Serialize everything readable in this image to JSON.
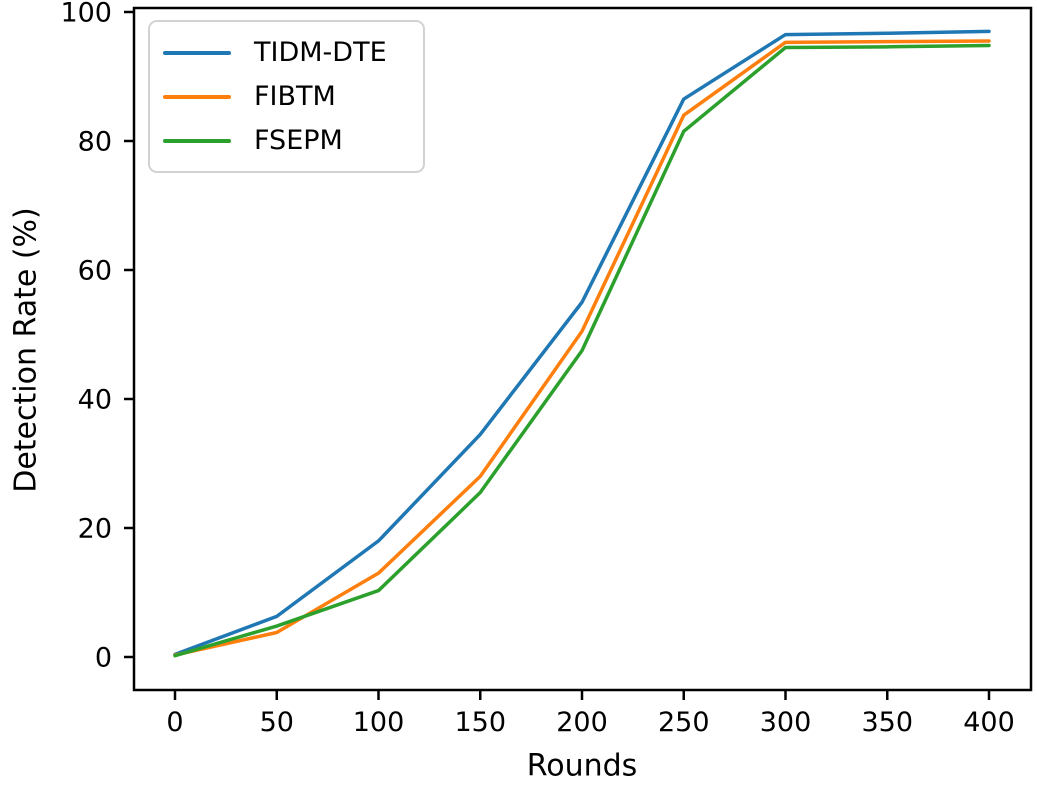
{
  "figure": {
    "background_color": "#ffffff",
    "spine_color": "#000000",
    "tick_color": "#000000",
    "legend_border_color": "#d2d2d2"
  },
  "chart_data": {
    "type": "line",
    "title": "",
    "xlabel": "Rounds",
    "ylabel": "Detection Rate (%)",
    "x": [
      0,
      50,
      100,
      150,
      200,
      250,
      300,
      350,
      400
    ],
    "series": [
      {
        "name": "TIDM-DTE",
        "color": "#1f77b4",
        "values": [
          0.4,
          6.3,
          18.0,
          34.5,
          55.0,
          86.5,
          96.5,
          96.7,
          97.0
        ]
      },
      {
        "name": "FIBTM",
        "color": "#ff7f0e",
        "values": [
          0.3,
          3.8,
          13.0,
          28.0,
          50.5,
          84.0,
          95.3,
          95.4,
          95.5
        ]
      },
      {
        "name": "FSEPM",
        "color": "#2ca02c",
        "values": [
          0.2,
          4.8,
          10.3,
          25.5,
          47.5,
          81.5,
          94.5,
          94.6,
          94.8
        ]
      }
    ],
    "xticks": [
      0,
      50,
      100,
      150,
      200,
      250,
      300,
      350,
      400
    ],
    "yticks": [
      0,
      20,
      40,
      60,
      80,
      100
    ],
    "xlim": [
      -22,
      421
    ],
    "ylim": [
      -5.1,
      100.7
    ],
    "grid": false,
    "legend_position": "upper-left"
  }
}
